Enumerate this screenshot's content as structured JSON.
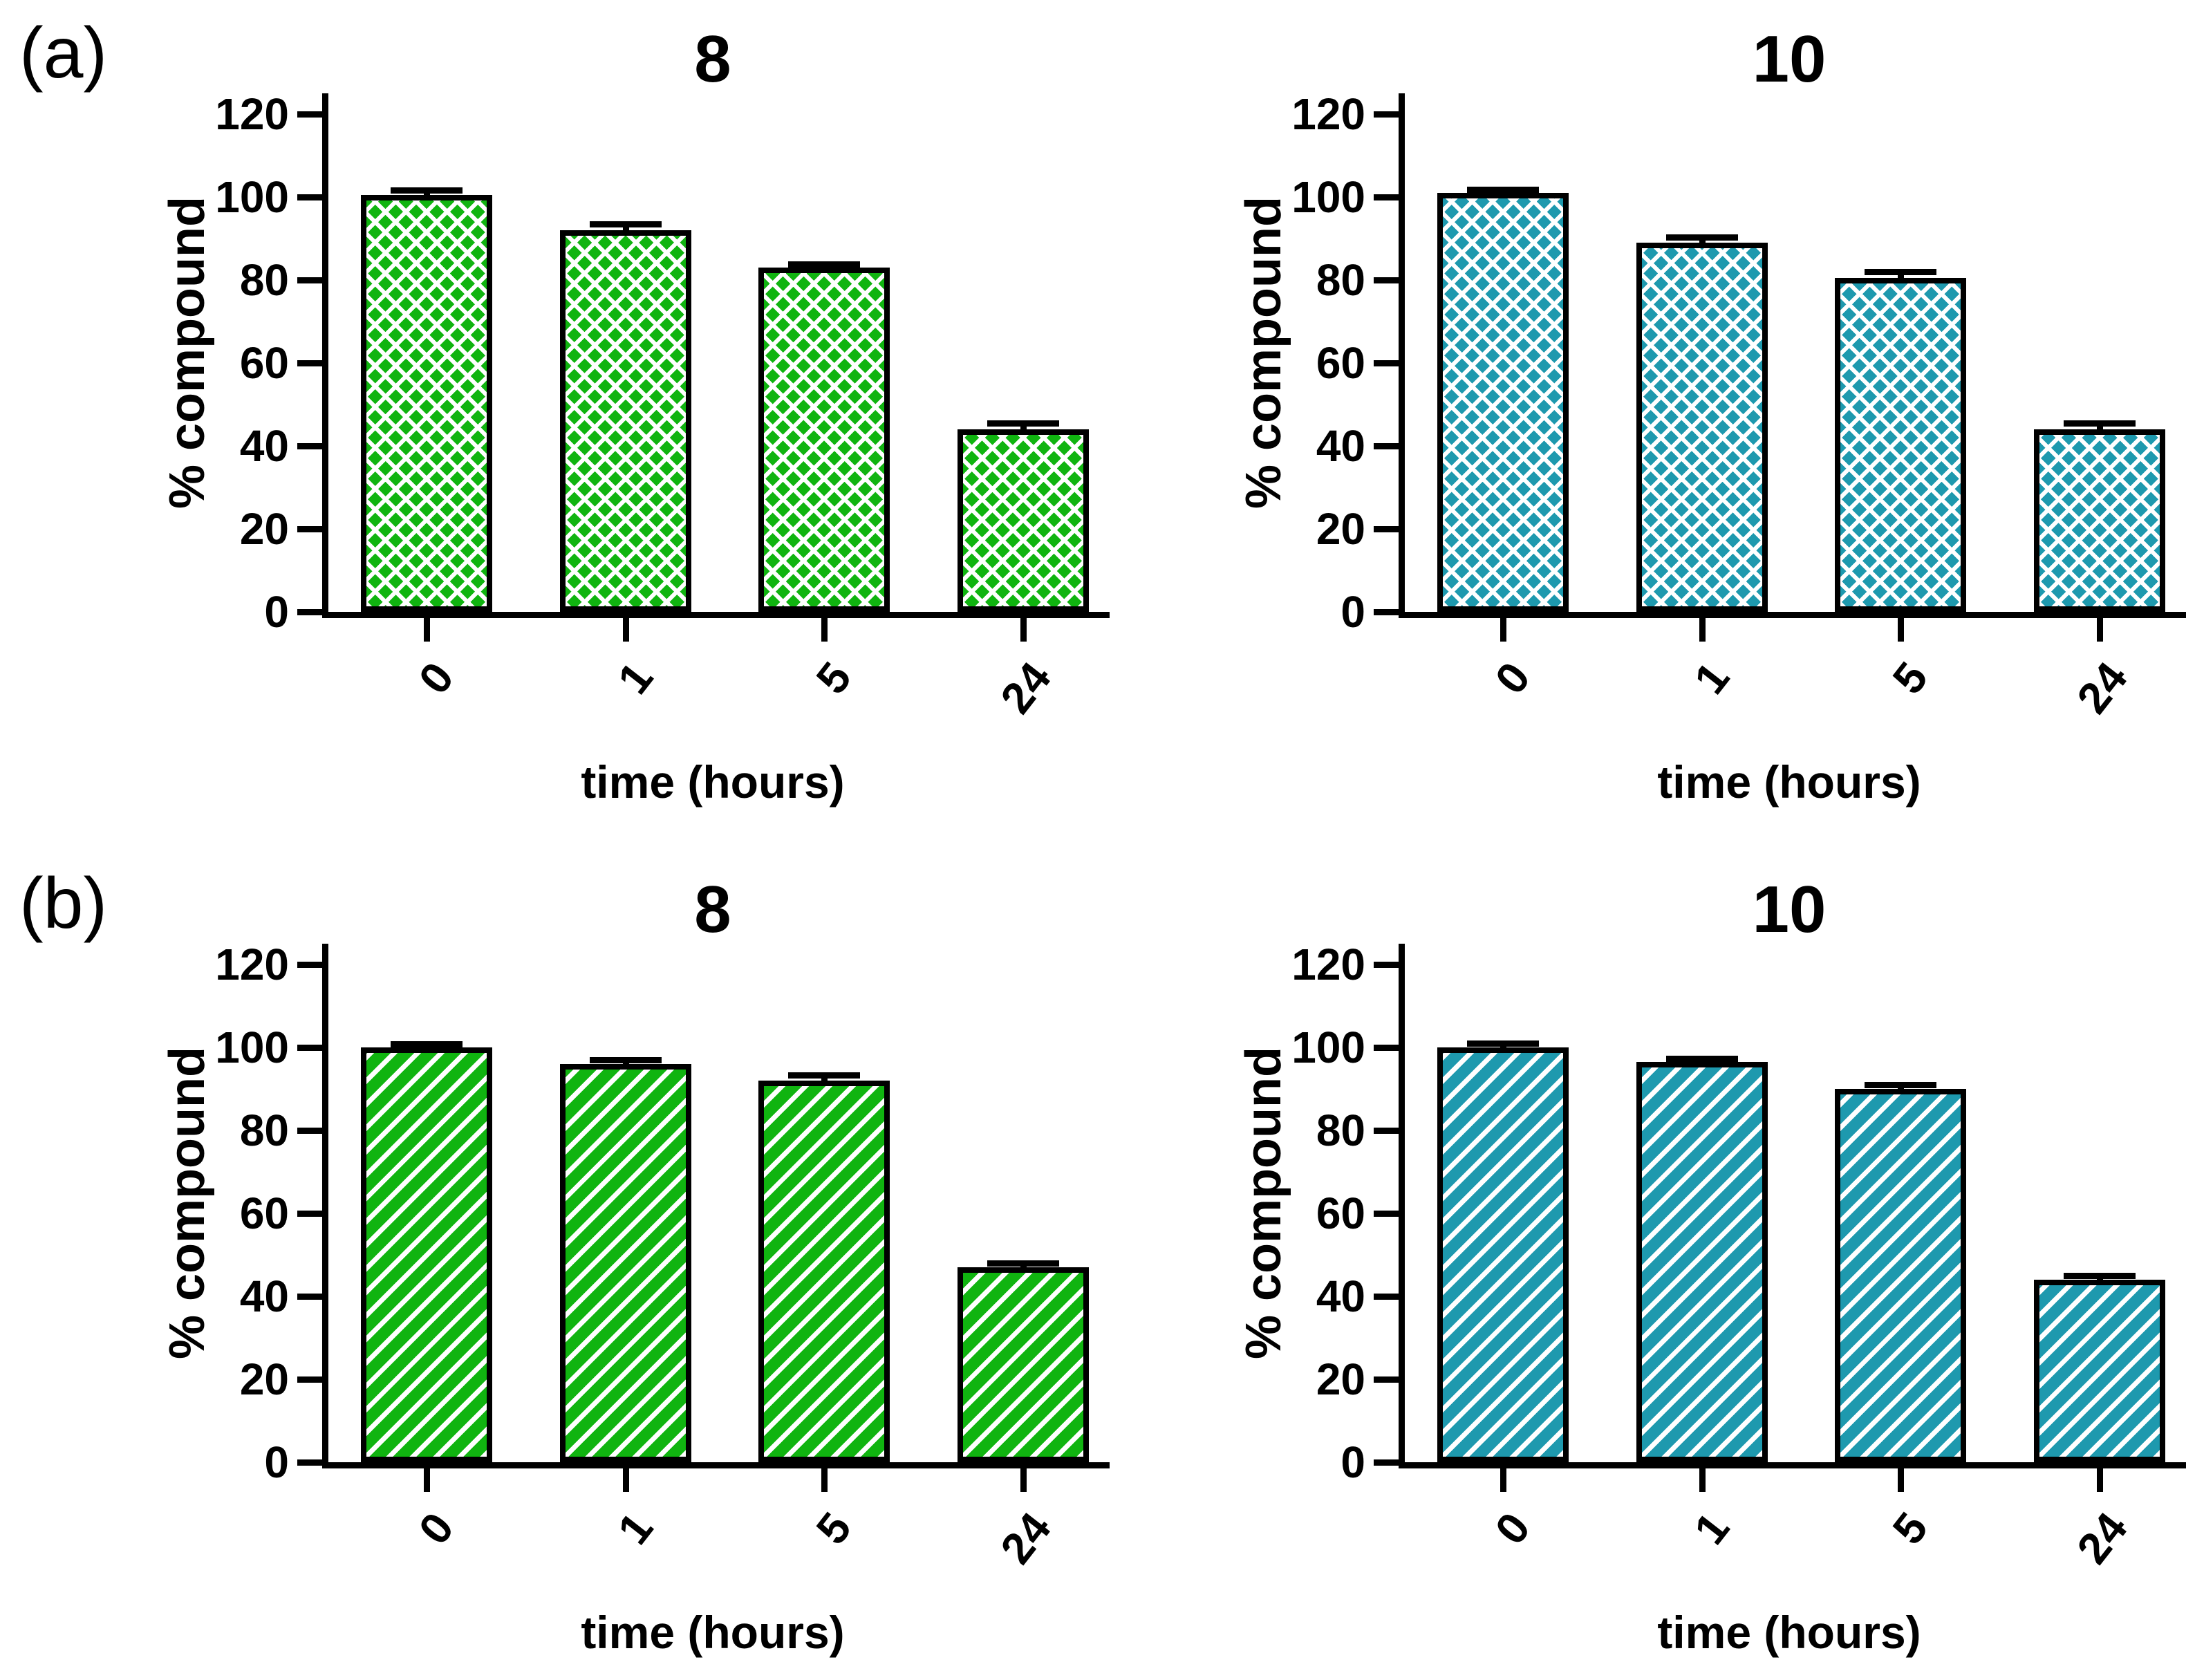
{
  "figure": {
    "panel_labels": [
      "(a)",
      "(b)"
    ]
  },
  "style": {
    "bar_green": "#10B410",
    "bar_teal": "#1E99AE",
    "axis_color": "#000000",
    "background": "#FFFFFF"
  },
  "chart_data": [
    {
      "panel": "(a)",
      "type": "bar",
      "title": "8",
      "xlabel": "time (hours)",
      "ylabel": "% compound",
      "categories": [
        "0",
        "1",
        "5",
        "24"
      ],
      "values": [
        100.5,
        92,
        83,
        44
      ],
      "errors": [
        1.0,
        1.3,
        0.7,
        1.3
      ],
      "yticks": [
        0,
        20,
        40,
        60,
        80,
        100,
        120
      ],
      "ylim": [
        0,
        120
      ],
      "grid": false,
      "legend": "none",
      "bar_color": "#10B410",
      "hatch": "diamond-crosshatch"
    },
    {
      "panel": "(a)",
      "type": "bar",
      "title": "10",
      "xlabel": "time (hours)",
      "ylabel": "% compound",
      "categories": [
        "0",
        "1",
        "5",
        "24"
      ],
      "values": [
        101,
        89,
        80.5,
        44
      ],
      "errors": [
        0.6,
        1.2,
        1.3,
        1.4
      ],
      "yticks": [
        0,
        20,
        40,
        60,
        80,
        100,
        120
      ],
      "ylim": [
        0,
        120
      ],
      "grid": false,
      "legend": "none",
      "bar_color": "#1E99AE",
      "hatch": "diamond-crosshatch"
    },
    {
      "panel": "(b)",
      "type": "bar",
      "title": "8",
      "xlabel": "time (hours)",
      "ylabel": "% compound",
      "categories": [
        "0",
        "1",
        "5",
        "24"
      ],
      "values": [
        100,
        96,
        92,
        47
      ],
      "errors": [
        0.6,
        0.8,
        1.2,
        0.8
      ],
      "yticks": [
        0,
        20,
        40,
        60,
        80,
        100,
        120
      ],
      "ylim": [
        0,
        120
      ],
      "grid": false,
      "legend": "none",
      "bar_color": "#10B410",
      "hatch": "diagonal-stripes"
    },
    {
      "panel": "(b)",
      "type": "bar",
      "title": "10",
      "xlabel": "time (hours)",
      "ylabel": "% compound",
      "categories": [
        "0",
        "1",
        "5",
        "24"
      ],
      "values": [
        100,
        96.5,
        90,
        44
      ],
      "errors": [
        0.8,
        0.7,
        0.8,
        0.8
      ],
      "yticks": [
        0,
        20,
        40,
        60,
        80,
        100,
        120
      ],
      "ylim": [
        0,
        120
      ],
      "grid": false,
      "legend": "none",
      "bar_color": "#1E99AE",
      "hatch": "diagonal-stripes"
    }
  ]
}
